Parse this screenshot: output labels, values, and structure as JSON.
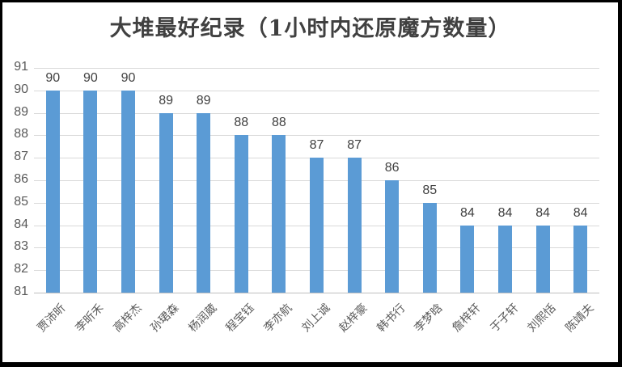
{
  "chart_data": {
    "type": "bar",
    "title": "大堆最好纪录（1小时内还原魔方数量）",
    "categories": [
      "贾沛昕",
      "李昕禾",
      "高梓杰",
      "孙珺森",
      "杨润葳",
      "程宝钰",
      "李亦航",
      "刘上诚",
      "赵梓豪",
      "韩书行",
      "李梦晗",
      "詹梓轩",
      "于子轩",
      "刘熙恬",
      "陈靖夫"
    ],
    "values": [
      90,
      90,
      90,
      89,
      89,
      88,
      88,
      87,
      87,
      86,
      85,
      84,
      84,
      84,
      84
    ],
    "data_labels": [
      90,
      90,
      90,
      89,
      89,
      88,
      88,
      87,
      87,
      86,
      85,
      84,
      84,
      84,
      84
    ],
    "xlabel": "",
    "ylabel": "",
    "ylim": [
      81,
      91
    ],
    "ytick_step": 1,
    "yticks": [
      81,
      82,
      83,
      84,
      85,
      86,
      87,
      88,
      89,
      90,
      91
    ],
    "grid": "horizontal",
    "legend": "none",
    "colors": {
      "bar": "#5B9BD5",
      "gridline": "#D9D9D9",
      "axis_line": "#BFBFBF",
      "title_text": "#404040",
      "data_label_text": "#404040",
      "tick_text": "#595959",
      "frame_border": "#000000",
      "background": "#ffffff"
    }
  }
}
